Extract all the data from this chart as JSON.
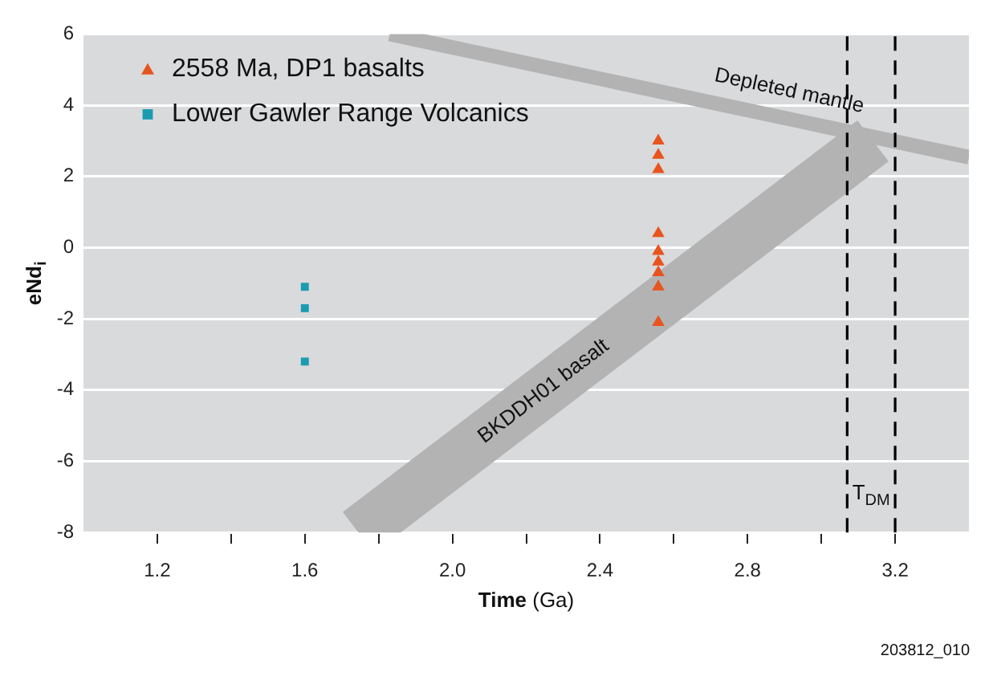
{
  "chart_data": {
    "type": "scatter",
    "xlabel": "Time (Ga)",
    "ylabel": "eNd$_{i}$",
    "xlim": [
      1.0,
      3.4
    ],
    "ylim": [
      -8,
      6
    ],
    "xticks": [
      {
        "value": 1.2,
        "label": "1.2"
      },
      {
        "value": 1.4,
        "label": null
      },
      {
        "value": 1.6,
        "label": "1.6"
      },
      {
        "value": 1.8,
        "label": null
      },
      {
        "value": 2.0,
        "label": "2.0"
      },
      {
        "value": 2.2,
        "label": null
      },
      {
        "value": 2.4,
        "label": "2.4"
      },
      {
        "value": 2.6,
        "label": null
      },
      {
        "value": 2.8,
        "label": "2.8"
      },
      {
        "value": 3.0,
        "label": null
      },
      {
        "value": 3.2,
        "label": "3.2"
      }
    ],
    "yticks": [
      -8,
      -6,
      -4,
      -2,
      0,
      2,
      4,
      6
    ],
    "grid": "y",
    "legend": "top left",
    "series": [
      {
        "name": "2558 Ma, DP1 basalts",
        "type": "scatter",
        "marker": "triangle",
        "color": "#e8541e",
        "x": [
          2.558,
          2.558,
          2.558,
          2.558,
          2.558,
          2.558,
          2.558,
          2.558,
          2.558
        ],
        "values": [
          3.0,
          2.6,
          2.2,
          0.4,
          -0.1,
          -0.4,
          -0.7,
          -1.1,
          -2.1
        ]
      },
      {
        "name": "Lower Gawler Range Volcanics",
        "type": "scatter",
        "marker": "square",
        "color": "#1a9bb0",
        "x": [
          1.6,
          1.6,
          1.6
        ],
        "values": [
          -1.1,
          -1.7,
          -3.2
        ]
      },
      {
        "name": "Depleted mantle",
        "type": "line",
        "color": "#b3b3b4",
        "x": [
          1.83,
          3.4
        ],
        "values": [
          6,
          2.54
        ]
      },
      {
        "name": "BKDDH01 basalt",
        "type": "line",
        "color": "#b3b3b4",
        "x": [
          1.745,
          3.14
        ],
        "values": [
          -8,
          3.0
        ]
      }
    ],
    "ref_lines": [
      {
        "axis": "x",
        "value": 3.07,
        "color": "#000000",
        "line_style": "dashed"
      },
      {
        "axis": "x",
        "value": 3.2,
        "color": "#000000",
        "line_style": "dashed"
      }
    ],
    "annotations": [
      "T$_{DM}$",
      "203812_010"
    ]
  }
}
